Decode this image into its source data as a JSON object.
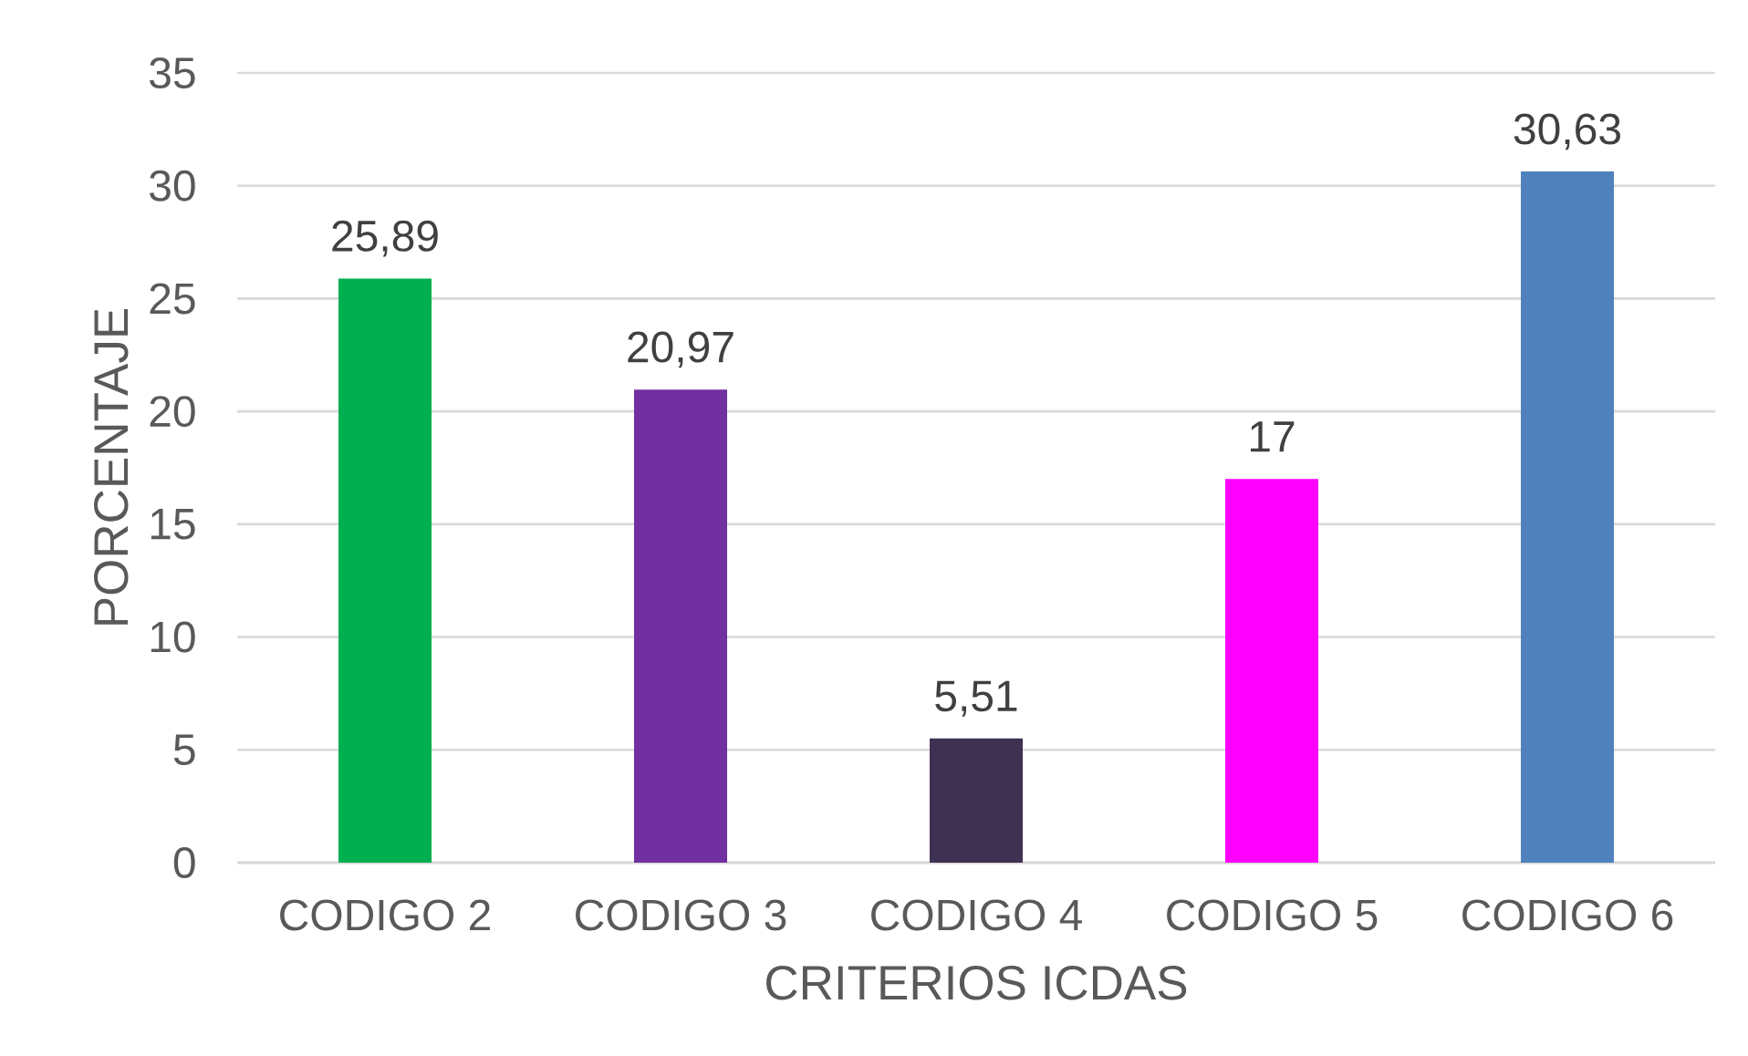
{
  "chart_data": {
    "type": "bar",
    "xlabel": "CRITERIOS ICDAS",
    "ylabel": "PORCENTAJE",
    "categories": [
      "CODIGO 2",
      "CODIGO 3",
      "CODIGO 4",
      "CODIGO 5",
      "CODIGO 6"
    ],
    "values": [
      25.89,
      20.97,
      5.51,
      17,
      30.63
    ],
    "colors": [
      "#00b050",
      "#7030a0",
      "#3f3151",
      "#ff00ff",
      "#4f81bd"
    ],
    "value_labels": [
      "25,89",
      "20,97",
      "5,51",
      "17",
      "30,63"
    ],
    "ylim": [
      0,
      35
    ],
    "yticks": [
      0,
      5,
      10,
      15,
      20,
      25,
      30,
      35
    ],
    "grid": "y"
  }
}
